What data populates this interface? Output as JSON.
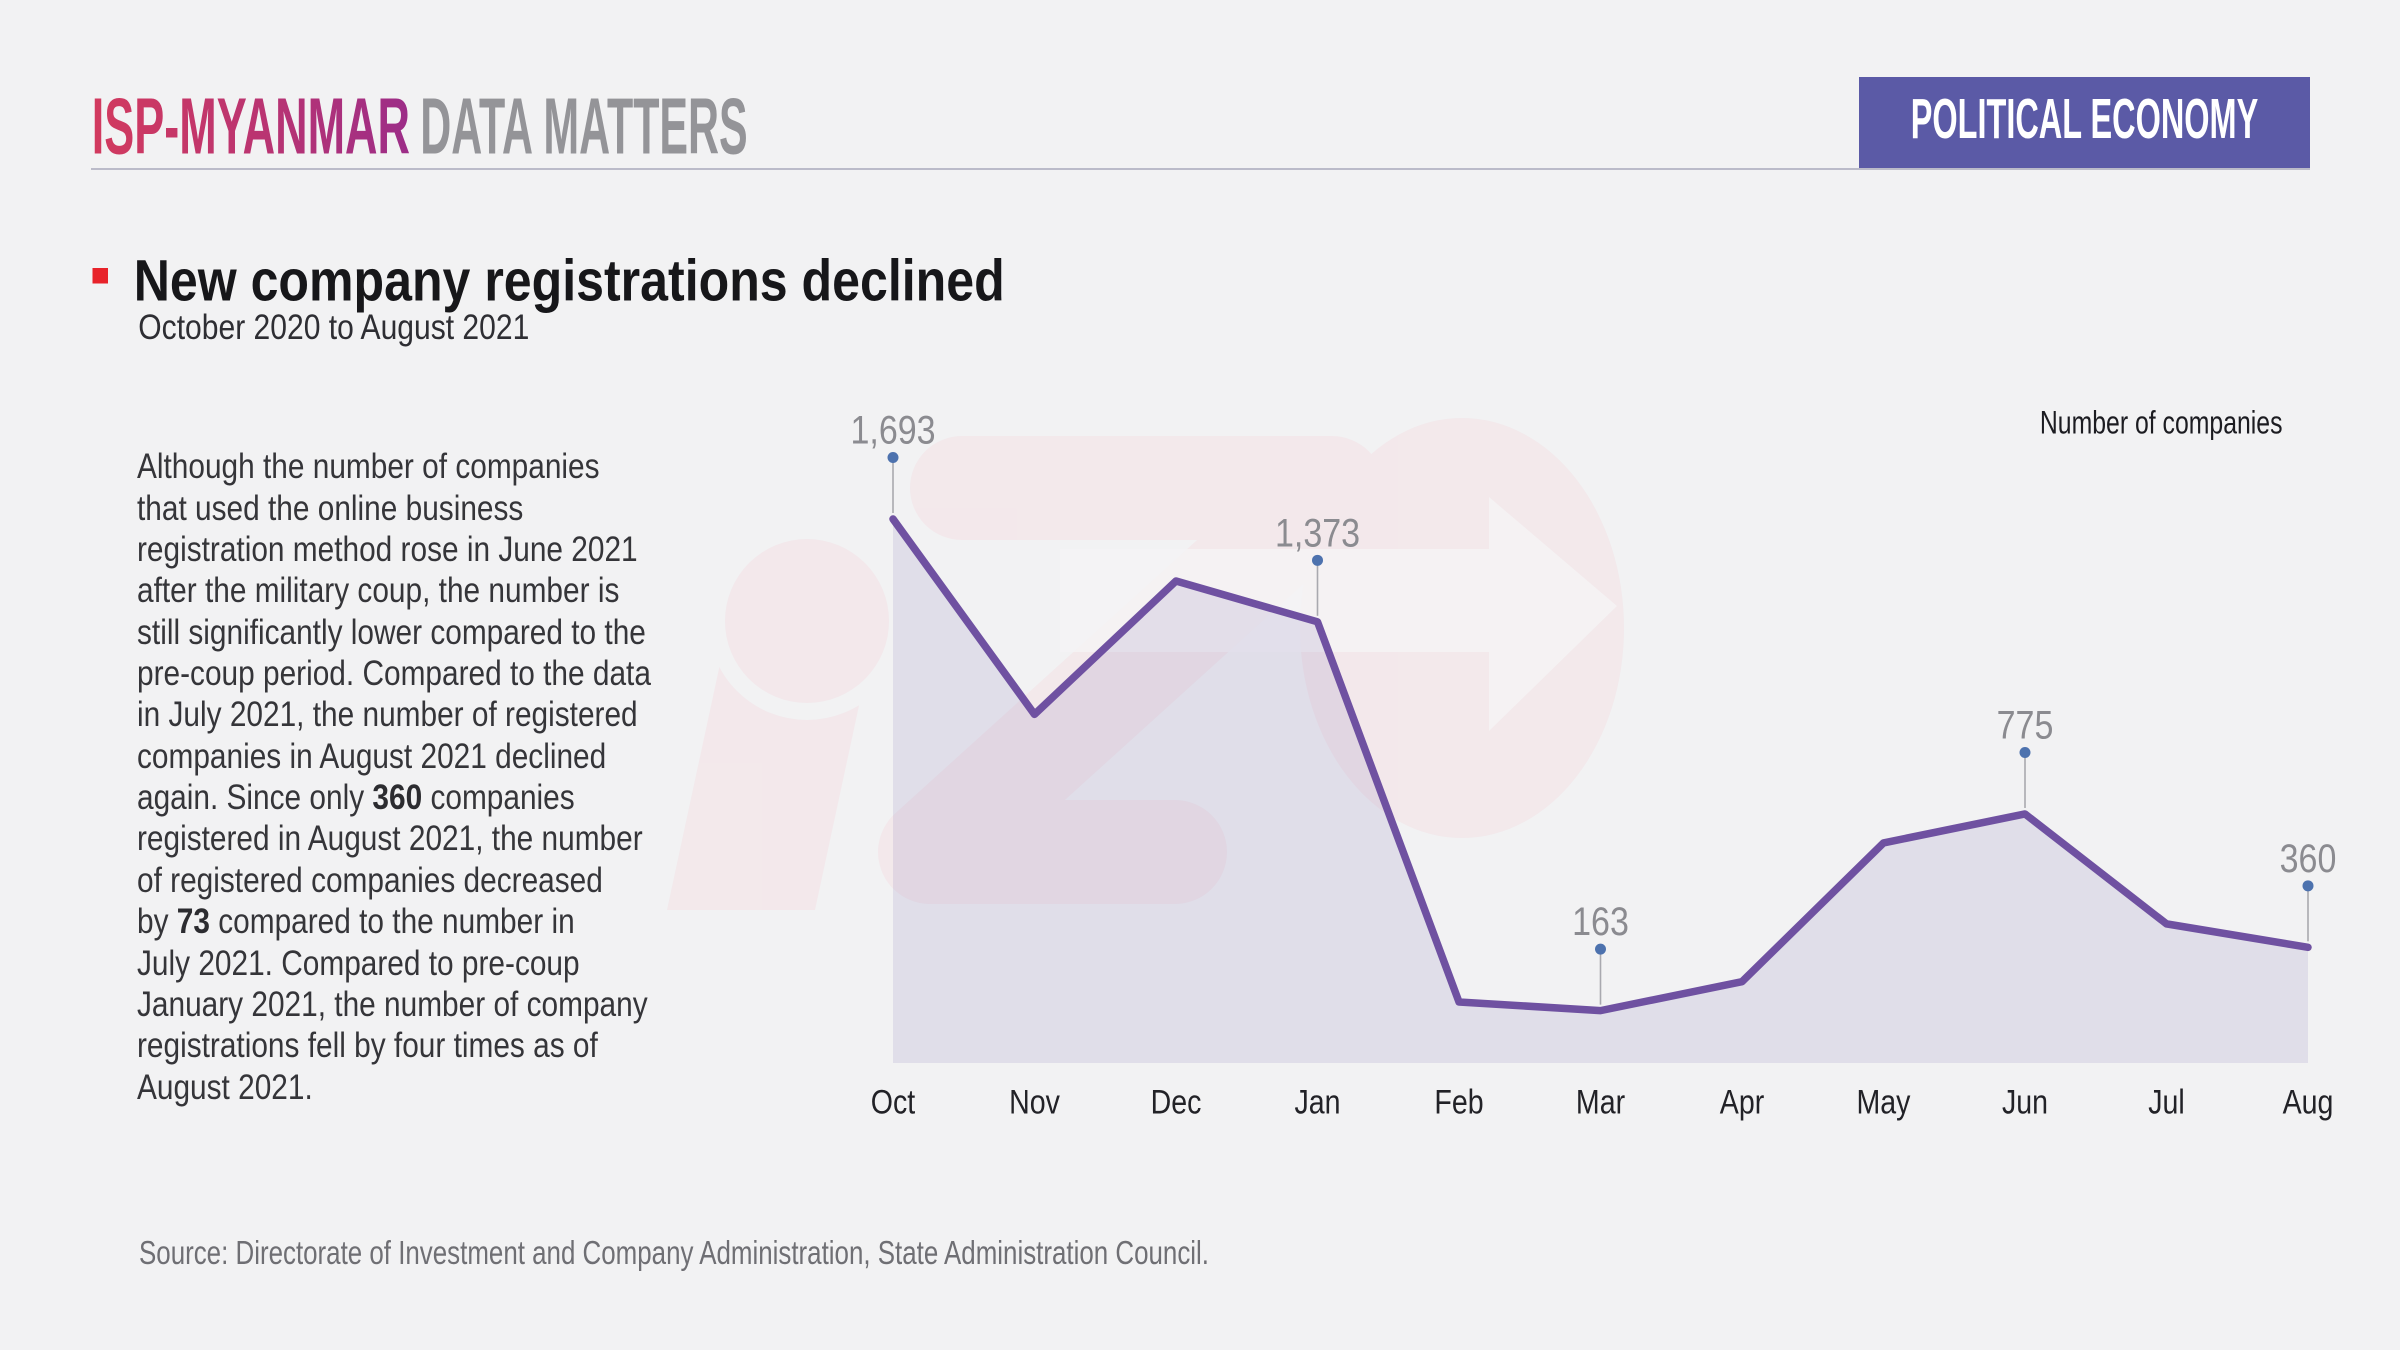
{
  "page": {
    "background_color": "#f2f2f3"
  },
  "header": {
    "brand_primary": "ISP-MYANMAR",
    "brand_secondary": "DATA MATTERS",
    "category_badge": "POLITICAL ECONOMY",
    "colors": {
      "brand_gradient_start": "#d23a5e",
      "brand_gradient_end": "#9c2d88",
      "brand_secondary_color": "#949498",
      "badge_bg": "#5b5aa6",
      "badge_text": "#ffffff",
      "divider": "#bbbbc9"
    }
  },
  "title": {
    "bullet_color": "#e8232a",
    "text": "New company registrations declined",
    "subtitle": "October 2020 to August 2021"
  },
  "summary": {
    "segments": [
      {
        "text": "Although the number of companies that used the online business registration method rose in June 2021 after the military coup, the number is still significantly lower compared to the pre-coup period. Compared to the data in July 2021, the number of registered companies in August 2021 declined again. Since only ",
        "bold": false
      },
      {
        "text": "360",
        "bold": true
      },
      {
        "text": " companies registered in August 2021, the number of registered companies decreased by ",
        "bold": false
      },
      {
        "text": "73",
        "bold": true
      },
      {
        "text": " compared to the number in July 2021. Compared to pre-coup January 2021, the number of company registrations fell by four times as of August 2021.",
        "bold": false
      }
    ]
  },
  "chart_data": {
    "type": "area",
    "title": "New company registrations declined",
    "subtitle": "October 2020 to August 2021",
    "legend": "Number of companies",
    "legend_position": "top-right",
    "categories": [
      "Oct",
      "Nov",
      "Dec",
      "Jan",
      "Feb",
      "Mar",
      "Apr",
      "May",
      "Jun",
      "Jul",
      "Aug"
    ],
    "values": [
      1693,
      1085,
      1500,
      1373,
      190,
      163,
      253,
      685,
      775,
      433,
      360
    ],
    "labeled_points": [
      {
        "index": 0,
        "label": "1,693"
      },
      {
        "index": 3,
        "label": "1,373"
      },
      {
        "index": 5,
        "label": "163"
      },
      {
        "index": 8,
        "label": "775"
      },
      {
        "index": 10,
        "label": "360"
      }
    ],
    "ylim": [
      0,
      1693
    ],
    "grid": false,
    "colors": {
      "line": "#6f51a1",
      "fill": "rgba(111,92,168,0.13)",
      "dot": "#4d72ae",
      "leader": "#a9a9af",
      "value_label": "#8b8b90",
      "axis_label": "#222227",
      "legend_label": "#1c1c21"
    }
  },
  "footer": {
    "source": "Source: Directorate of Investment and Company Administration, State Administration Council."
  },
  "watermark": {
    "name": "isp-logo-watermark"
  }
}
